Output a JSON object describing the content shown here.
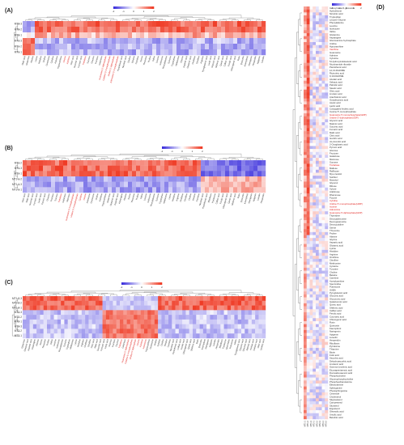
{
  "figure": {
    "panels": [
      "(A)",
      "(B)",
      "(C)",
      "(D)"
    ],
    "colors": {
      "low": "#3b2fdc",
      "mid": "#ffffff",
      "high": "#ef3b25"
    },
    "legend_ticks": [
      "-2",
      "-1",
      "0",
      "1",
      "2"
    ]
  },
  "chart_data": [
    {
      "type": "heatmap",
      "panel": "(A)",
      "rows": [
        "MT3-3",
        "MT3-2",
        "MT3-1",
        "MT1-3",
        "MT1-2",
        "MT1-1"
      ],
      "highlighted_columns": [
        "Guanosine-5'-diphosphate",
        "Cytidine 5'-monophosphate",
        "Uridine 5'-diphosphate",
        "Trehalose",
        "Inosine",
        "Xanthine",
        "Adenosine 5'-monophosphate"
      ],
      "columns": [
        "Malic acid",
        "Glutamine",
        "Alanine",
        "Lysine",
        "Histidine",
        "Uridine",
        "Guanosine",
        "Cytidine",
        "Adenine",
        "Hypoxanthine",
        "Inosine",
        "Xanthine",
        "Citric acid",
        "Succinic acid",
        "Fumaric acid",
        "Trehalose",
        "Sucrose",
        "Glucose",
        "Fructose",
        "Galactose",
        "Guanosine-5'-diphosphate",
        "Cytidine 5'-monophosphate",
        "Uridine 5'-diphosphate",
        "Adenosine 5'-monophosphate",
        "Pantothenic acid",
        "Nicotinic acid",
        "Choline",
        "Betaine",
        "Carnitine",
        "Serine",
        "Threonine",
        "Proline",
        "Valine",
        "Leucine",
        "Isoleucine",
        "Phenylalanine",
        "Tyrosine",
        "Tryptophan",
        "Methionine",
        "Glycine",
        "Aspartic acid",
        "Glutamic acid",
        "Ornithine",
        "Citrulline",
        "Arginine",
        "Pyroglutamic acid",
        "Lactic acid",
        "Glyceric acid",
        "Shikimic acid",
        "Quinic acid",
        "Caffeic acid",
        "Ferulic acid",
        "Chlorogenic acid",
        "Rutin",
        "Quercetin",
        "Kaempferol",
        "Naringenin",
        "Hesperidin",
        "Apigenin",
        "Luteolin"
      ],
      "clusters": [
        {
          "rows": [
            0,
            1,
            2
          ],
          "pattern": "high"
        },
        {
          "rows": [
            3,
            4,
            5
          ],
          "pattern": "low"
        }
      ]
    },
    {
      "type": "heatmap",
      "panel": "(B)",
      "rows": [
        "MT1-2",
        "MT1-3",
        "MT1-1",
        "MT1-1-2",
        "MT1-1-3",
        "MT1-1-1"
      ],
      "highlighted_columns": [
        "Guanosine 5'-monophosphate",
        "Uridine 5'-monophosphate",
        "Trehalose",
        "Cytidine",
        "Inosine"
      ],
      "columns": [
        "Citric acid",
        "Malic acid",
        "Succinic acid",
        "Fumaric acid",
        "Lactic acid",
        "Pyruvic acid",
        "Glucose",
        "Fructose",
        "Sucrose",
        "Trehalose",
        "Galactose",
        "Mannose",
        "Guanosine 5'-monophosphate",
        "Uridine 5'-monophosphate",
        "Cytidine",
        "Inosine",
        "Adenosine",
        "Guanosine",
        "Uridine",
        "Xanthine",
        "Hypoxanthine",
        "Glutamine",
        "Glutamic acid",
        "Aspartic acid",
        "Asparagine",
        "Alanine",
        "Serine",
        "Threonine",
        "Proline",
        "Valine",
        "Leucine",
        "Isoleucine",
        "Phenylalanine",
        "Tyrosine",
        "Tryptophan",
        "Methionine",
        "Lysine",
        "Histidine",
        "Arginine",
        "Ornithine",
        "Citrulline",
        "Choline",
        "Betaine",
        "Carnitine",
        "Nicotinic acid",
        "Pantothenic acid",
        "Riboflavin",
        "Pyridoxine",
        "Caffeic acid",
        "Ferulic acid",
        "Chlorogenic acid",
        "Quinic acid",
        "Shikimic acid",
        "Rutin",
        "Quercetin",
        "Kaempferol",
        "Naringenin",
        "Apigenin",
        "Luteolin",
        "Hesperidin"
      ]
    },
    {
      "type": "heatmap",
      "panel": "(C)",
      "rows": [
        "MT1-2-3",
        "MT1-2-2",
        "MT1-2-1",
        "MT2-3",
        "MT2-2",
        "MT2-1",
        "MT3-3",
        "MT3-2",
        "MT3-1"
      ],
      "highlighted_columns": [
        "Guanosine 5'-diphosphate",
        "Cytidine 5'-monophosphate",
        "Uridine 5'-diphosphate",
        "Trehalose",
        "Inosine",
        "Xanthine",
        "Adenosine"
      ],
      "columns": [
        "Glutamine",
        "Glutamic acid",
        "Aspartic acid",
        "Asparagine",
        "Alanine",
        "Serine",
        "Threonine",
        "Proline",
        "Valine",
        "Leucine",
        "Isoleucine",
        "Phenylalanine",
        "Tyrosine",
        "Tryptophan",
        "Methionine",
        "Lysine",
        "Histidine",
        "Arginine",
        "Ornithine",
        "Citrulline",
        "Citric acid",
        "Malic acid",
        "Succinic acid",
        "Fumaric acid",
        "Lactic acid",
        "Glucose",
        "Fructose",
        "Sucrose",
        "Trehalose",
        "Galactose",
        "Guanosine 5'-diphosphate",
        "Cytidine 5'-monophosphate",
        "Uridine 5'-diphosphate",
        "Inosine",
        "Xanthine",
        "Adenosine",
        "Hypoxanthine",
        "Guanosine",
        "Uridine",
        "Cytidine",
        "Choline",
        "Betaine",
        "Carnitine",
        "Nicotinic acid",
        "Pantothenic acid",
        "Caffeic acid",
        "Ferulic acid",
        "Chlorogenic acid",
        "Quinic acid",
        "Shikimic acid",
        "Rutin",
        "Quercetin",
        "Kaempferol",
        "Naringenin",
        "Apigenin",
        "Luteolin",
        "Hesperidin",
        "Riboflavin",
        "Pyridoxine",
        "Spermidine",
        "Putrescine",
        "GABA",
        "Pyroglutamic acid",
        "Glyceric acid",
        "Gluconic acid",
        "Malonic acid",
        "Azelaic acid",
        "Sebacic acid",
        "Oleic acid",
        "Linoleic acid"
      ]
    },
    {
      "type": "heatmap",
      "panel": "(D)",
      "columns": [
        "MT1-1",
        "MT1-2",
        "MT1-3",
        "MT2-1",
        "MT2-2",
        "MT2-3",
        "MT3-1",
        "MT3-2"
      ],
      "highlighted_rows": [
        "Guanosine 5'-monophosphate(GMP)",
        "Uridine 5'-diphosphate(UDP)",
        "Cytidine",
        "Trehalose",
        "Inosine",
        "Xanthine",
        "Guanosine 5'-diphosphate(GDP)",
        "Adenosine",
        "Uridine 5'-monophosphate(UMP)"
      ],
      "rows": [
        "Indoxyl-beta-D-glucoside",
        "Hydrothione",
        "Nicotinic acid",
        "Tryptophan",
        "Leucine-Glycine",
        "Phenylalanine",
        "Leucine",
        "Isoleucine",
        "Valine",
        "Glutamine",
        "Asparagine",
        "Glucosamine 6-phosphate",
        "Uridine",
        "Hypoxanthine",
        "Xanthine",
        "Guanosine",
        "Adenine",
        "Cytosine",
        "5-Hydroxyindoleacetic acid",
        "Nicotinamide riboside",
        "Pantothenic acid",
        "12,13-DiHOME",
        "Ricinoleic acid",
        "9,10-DiHOME",
        "Azelaic acid",
        "Sebacic acid",
        "Palmitic acid",
        "Stearic acid",
        "Oleic acid",
        "Linoleic acid",
        "Arachidonic acid",
        "Octadecanoic acid",
        "Acetic acid",
        "Lactic acid",
        "Conjugated linoleic acid",
        "Inosine 5'-monophosphate",
        "Guanosine 5'-monophosphate(GMP)",
        "Uridine 5'-diphosphate(UDP)",
        "Glyceric acid",
        "Malonic acid",
        "Succinic acid",
        "Fumaric acid",
        "Malic acid",
        "Citric acid",
        "Isocitric acid",
        "cis-Aconitic acid",
        "2-Oxoglutaric acid",
        "Pyruvic acid",
        "Glucose",
        "Fructose",
        "Galactose",
        "Mannose",
        "Sucrose",
        "Trehalose",
        "Maltose",
        "Raffinose",
        "Myo-inositol",
        "Sorbitol",
        "Mannitol",
        "Glycerol",
        "Ribose",
        "Xylose",
        "Arabinose",
        "Rhamnose",
        "Fucose",
        "Cytidine",
        "Uridine 5'-monophosphate(UMP)",
        "Inosine",
        "Adenosine",
        "Guanosine 5'-diphosphate(GDP)",
        "Thymidine",
        "Deoxyadenosine",
        "Deoxyguanosine",
        "Deoxycytidine",
        "Serine",
        "Threonine",
        "Proline",
        "Alanine",
        "Glycine",
        "Aspartic acid",
        "Glutamic acid",
        "Lysine",
        "Histidine",
        "Arginine",
        "Ornithine",
        "Citrulline",
        "Methionine",
        "Cysteine",
        "Tyrosine",
        "Choline",
        "Betaine",
        "Carnitine",
        "Acetylcarnitine",
        "Spermidine",
        "Putrescine",
        "GABA",
        "Pyroglutamic acid",
        "Gluconic acid",
        "Glucuronic acid",
        "Galacturonic acid",
        "Quinic acid",
        "Shikimic acid",
        "Caffeic acid",
        "Ferulic acid",
        "Coumaric acid",
        "Chlorogenic acid",
        "Rutin",
        "Quercetin",
        "Kaempferol",
        "Naringenin",
        "Apigenin",
        "Luteolin",
        "Hesperidin",
        "Riboflavin",
        "Pyridoxine",
        "Thiamine",
        "Biotin",
        "Folic acid",
        "Ascorbic acid",
        "Dehydroascorbic acid",
        "Linolenic acid",
        "Gamma-Linolenic acid",
        "Eicosapentaenoic acid",
        "Docosahexaenoic acid",
        "Phosphocholine",
        "Glycerophosphocholine",
        "Phosphoethanolamine",
        "Ethanolamine",
        "Sphinganine",
        "Phytosphingosine",
        "Ceramide",
        "Cholesterol",
        "Stigmasterol",
        "Campesterol",
        "Sitosterol",
        "Ergosterol",
        "Oleanolic acid",
        "Ursolic acid",
        "Betulinic acid"
      ]
    }
  ]
}
